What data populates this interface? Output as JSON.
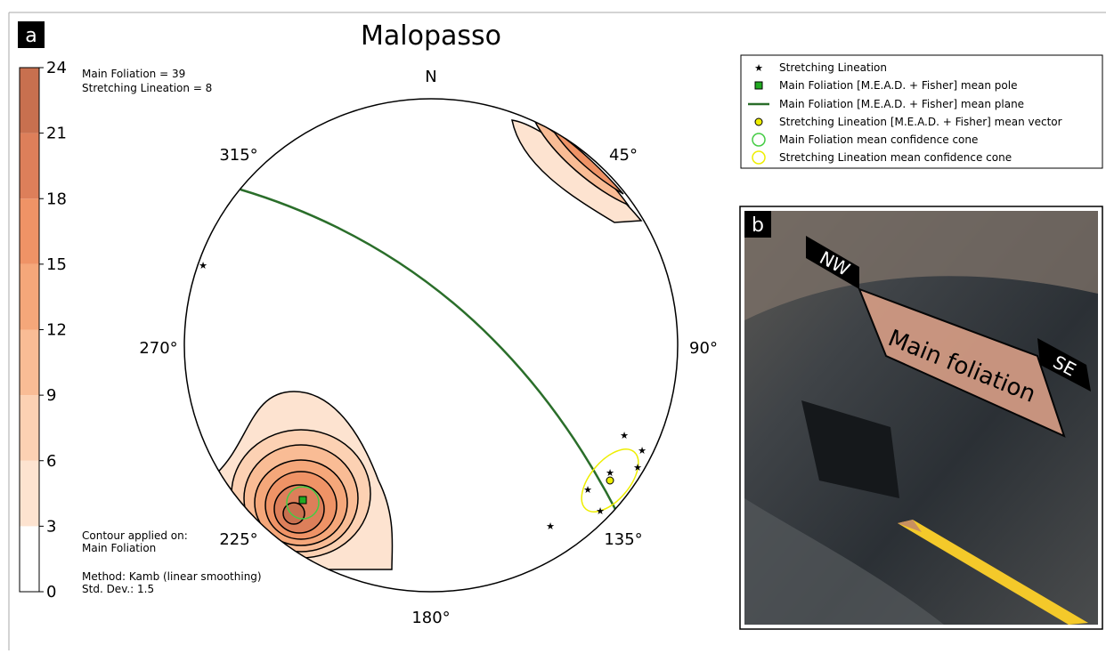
{
  "panel_a": {
    "label": "a",
    "title": "Malopasso",
    "counts": [
      "Main Foliation = 39",
      "Stretching Lineation = 8"
    ],
    "colorbar": {
      "ticks": [
        0,
        3,
        6,
        9,
        12,
        15,
        18,
        21,
        24
      ],
      "lim": [
        0,
        24
      ],
      "colors": [
        "#ffffff",
        "#fde3d0",
        "#fcd1b3",
        "#f9bc95",
        "#f5a77a",
        "#ef9366",
        "#dd7f5a",
        "#c8704f"
      ]
    },
    "directions": {
      "north": "N",
      "d45": "45°",
      "d90": "90°",
      "d135": "135°",
      "d180": "180°",
      "d225": "225°",
      "d270": "270°",
      "d315": "315°"
    },
    "legend": [
      "Stretching Lineation",
      "Main Foliation [M.E.A.D. + Fisher] mean pole",
      "Main Foliation [M.E.A.D. + Fisher] mean plane",
      "Stretching Lineation [M.E.A.D. + Fisher] mean vector",
      "Main Foliation mean confidence cone",
      "Stretching Lineation mean confidence cone"
    ],
    "notes": [
      "Contour applied on:",
      "Main Foliation",
      "Method: Kamb (linear smoothing)",
      "Std. Dev.: 1.5"
    ]
  },
  "panel_b": {
    "label": "b",
    "tags": [
      "NW",
      "Main foliation",
      "SE"
    ]
  }
}
